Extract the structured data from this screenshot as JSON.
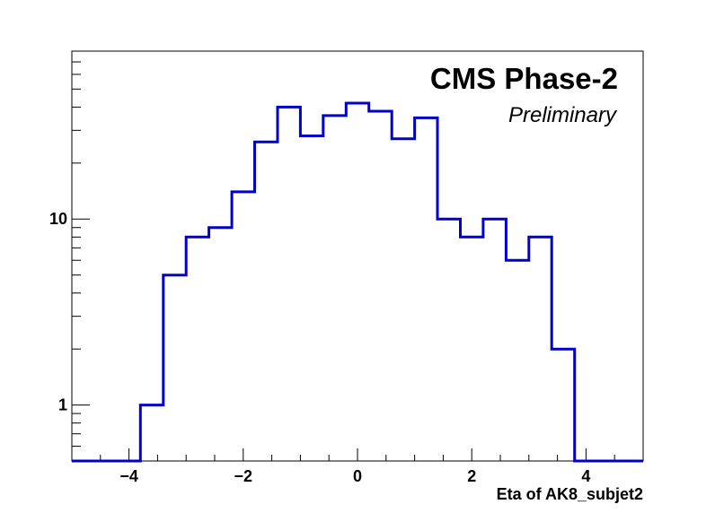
{
  "chart_data": {
    "type": "histogram",
    "title": "CMS Phase-2",
    "subtitle": "Preliminary",
    "xlabel": "Eta of AK8_subjet2",
    "ylabel": "",
    "xlim": [
      -5,
      5
    ],
    "ylim": [
      0.5,
      80
    ],
    "yscale": "log",
    "grid": false,
    "x_ticks": [
      -4,
      -2,
      0,
      2,
      4
    ],
    "x_tick_labels": [
      "−4",
      "−2",
      "0",
      "2",
      "4"
    ],
    "y_ticks": [
      1,
      10
    ],
    "y_tick_labels": [
      "1",
      "10"
    ],
    "line_color": "#0000c8",
    "bin_edges": [
      -5.0,
      -4.6,
      -4.2,
      -3.8,
      -3.4,
      -3.0,
      -2.6,
      -2.2,
      -1.8,
      -1.4,
      -1.0,
      -0.6,
      -0.2,
      0.2,
      0.6,
      1.0,
      1.4,
      1.8,
      2.2,
      2.6,
      3.0,
      3.4,
      3.8,
      4.2,
      4.6,
      5.0
    ],
    "values": [
      0,
      0,
      0,
      1,
      5,
      8,
      9,
      14,
      26,
      40,
      28,
      36,
      42,
      38,
      27,
      35,
      10,
      8,
      10,
      6,
      8,
      2,
      0,
      0,
      0
    ]
  }
}
